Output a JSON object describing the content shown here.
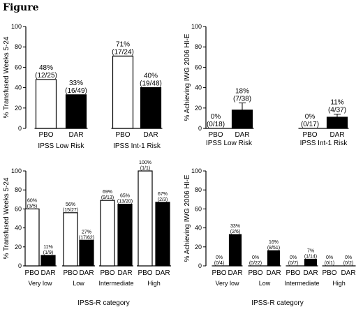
{
  "figure_title": "Figure",
  "chart_data": [
    {
      "type": "bar",
      "ylabel": "% Transfused Weeks 5-24",
      "ylim": [
        0,
        100
      ],
      "yticks": [
        0,
        20,
        40,
        60,
        80,
        100
      ],
      "groups": [
        {
          "label": "IPSS Low Risk",
          "bars": [
            {
              "category": "PBO",
              "value": 48,
              "pct": "48%",
              "frac": "(12/25)",
              "fill": "white"
            },
            {
              "category": "DAR",
              "value": 33,
              "pct": "33%",
              "frac": "(16/49)",
              "fill": "black"
            }
          ]
        },
        {
          "label": "IPSS Int-1 Risk",
          "bars": [
            {
              "category": "PBO",
              "value": 71,
              "pct": "71%",
              "frac": "(17/24)",
              "fill": "white"
            },
            {
              "category": "DAR",
              "value": 40,
              "pct": "40%",
              "frac": "(19/48)",
              "fill": "black"
            }
          ]
        }
      ],
      "colors": {
        "pbo": "#ffffff",
        "dar": "#000000"
      }
    },
    {
      "type": "bar",
      "ylabel": "% Achieving IWG 2006 HI-E",
      "ylim": [
        0,
        100
      ],
      "yticks": [
        0,
        20,
        40,
        60,
        80,
        100
      ],
      "groups": [
        {
          "label": "IPSS Low Risk",
          "bars": [
            {
              "category": "PBO",
              "value": 0,
              "pct": "0%",
              "frac": "(0/18)",
              "fill": "white"
            },
            {
              "category": "DAR",
              "value": 18,
              "pct": "18%",
              "frac": "(7/38)",
              "fill": "black",
              "error_upper": 25
            }
          ]
        },
        {
          "label": "IPSS Int-1 Risk",
          "bars": [
            {
              "category": "PBO",
              "value": 0,
              "pct": "0%",
              "frac": "(0/17)",
              "fill": "white"
            },
            {
              "category": "DAR",
              "value": 11,
              "pct": "11%",
              "frac": "(4/37)",
              "fill": "black",
              "error_upper": 14
            }
          ]
        }
      ]
    },
    {
      "type": "bar",
      "ylabel": "% Transfused Weeks 5-24",
      "xlabel": "IPSS-R category",
      "ylim": [
        0,
        100
      ],
      "yticks": [
        0,
        20,
        40,
        60,
        80,
        100
      ],
      "groups": [
        {
          "label": "Very low",
          "bars": [
            {
              "category": "PBO",
              "value": 60,
              "pct": "60%",
              "frac": "(3/5)",
              "fill": "white"
            },
            {
              "category": "DAR",
              "value": 11,
              "pct": "11%",
              "frac": "(1/9)",
              "fill": "black"
            }
          ]
        },
        {
          "label": "Low",
          "bars": [
            {
              "category": "PBO",
              "value": 56,
              "pct": "56%",
              "frac": "(15/27)",
              "fill": "white"
            },
            {
              "category": "DAR",
              "value": 27,
              "pct": "27%",
              "frac": "(17/62)",
              "fill": "black"
            }
          ]
        },
        {
          "label": "Intermediate",
          "bars": [
            {
              "category": "PBO",
              "value": 69,
              "pct": "69%",
              "frac": "(9/13)",
              "fill": "white"
            },
            {
              "category": "DAR",
              "value": 65,
              "pct": "65%",
              "frac": "(13/20)",
              "fill": "black"
            }
          ]
        },
        {
          "label": "High",
          "bars": [
            {
              "category": "PBO",
              "value": 100,
              "pct": "100%",
              "frac": "(1/1)",
              "fill": "white"
            },
            {
              "category": "DAR",
              "value": 67,
              "pct": "67%",
              "frac": "(2/3)",
              "fill": "black"
            }
          ]
        }
      ]
    },
    {
      "type": "bar",
      "ylabel": "% Achieving IWG 2006 HI-E",
      "xlabel": "IPSS-R category",
      "ylim": [
        0,
        100
      ],
      "yticks": [
        0,
        20,
        40,
        60,
        80,
        100
      ],
      "groups": [
        {
          "label": "Very low",
          "bars": [
            {
              "category": "PBO",
              "value": 0,
              "pct": "0%",
              "frac": "(0/4)",
              "fill": "white"
            },
            {
              "category": "DAR",
              "value": 33,
              "pct": "33%",
              "frac": "(2/6)",
              "fill": "black"
            }
          ]
        },
        {
          "label": "Low",
          "bars": [
            {
              "category": "PBO",
              "value": 0,
              "pct": "0%",
              "frac": "(0/22)",
              "fill": "white"
            },
            {
              "category": "DAR",
              "value": 16,
              "pct": "16%",
              "frac": "(8/51)",
              "fill": "black"
            }
          ]
        },
        {
          "label": "Intermediate",
          "bars": [
            {
              "category": "PBO",
              "value": 0,
              "pct": "0%",
              "frac": "(0/7)",
              "fill": "white"
            },
            {
              "category": "DAR",
              "value": 7,
              "pct": "7%",
              "frac": "(1/14)",
              "fill": "black"
            }
          ]
        },
        {
          "label": "High",
          "bars": [
            {
              "category": "PBO",
              "value": 0,
              "pct": "0%",
              "frac": "(0/1)",
              "fill": "white"
            },
            {
              "category": "DAR",
              "value": 0,
              "pct": "0%",
              "frac": "(0/2)",
              "fill": "black"
            }
          ]
        }
      ]
    }
  ]
}
